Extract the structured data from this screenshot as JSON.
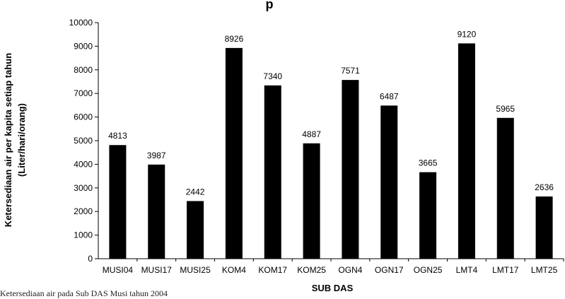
{
  "chart_data": {
    "type": "bar",
    "title": "p",
    "categories": [
      "MUSI04",
      "MUSI17",
      "MUSI25",
      "KOM4",
      "KOM17",
      "KOM25",
      "OGN4",
      "OGN17",
      "OGN25",
      "LMT4",
      "LMT17",
      "LMT25"
    ],
    "values": [
      4813,
      3987,
      2442,
      8926,
      7340,
      4887,
      7571,
      6487,
      3665,
      9120,
      5965,
      2636
    ],
    "ylabel_line1": "Ketersediaan air  per kapita setiap tahun",
    "ylabel_line2": "(Liter/hari/orang)",
    "xlabel": "SUB DAS",
    "ylim": [
      0,
      10000
    ],
    "yticks": [
      0,
      1000,
      2000,
      3000,
      4000,
      5000,
      6000,
      7000,
      8000,
      9000,
      10000
    ],
    "bar_color": "#000000",
    "grid": false,
    "legend": false
  },
  "caption": "Ketersediaan air pada Sub DAS Musi tahun 2004"
}
